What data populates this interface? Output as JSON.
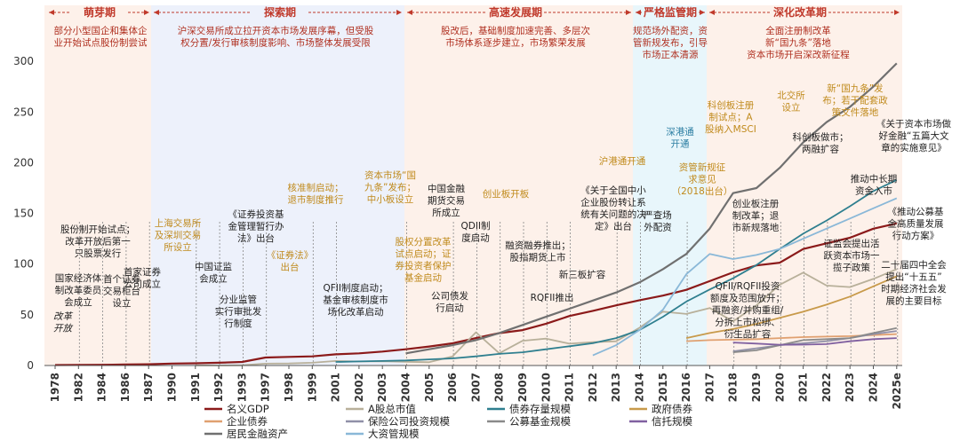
{
  "chart_data": {
    "type": "line",
    "x_labels": [
      "1978",
      "1982",
      "1984",
      "1986",
      "1987",
      "1990",
      "1991",
      "1992",
      "1993",
      "1997",
      "1998",
      "1999",
      "2001",
      "2002",
      "2003",
      "2004",
      "2005",
      "2006",
      "2007",
      "2008",
      "2009",
      "2010",
      "2011",
      "2012",
      "2013",
      "2014",
      "2015",
      "2016",
      "2017",
      "2018",
      "2019",
      "2020",
      "2021",
      "2022",
      "2023",
      "2024",
      "2025e"
    ],
    "ylim": [
      0,
      300
    ],
    "yticks": [
      "0",
      "50",
      "100",
      "150",
      "200",
      "250",
      "300"
    ],
    "colors": {
      "gdp": "#8b1a1a",
      "ashare": "#b8b09a",
      "bond": "#2f7f8f",
      "govbond": "#c89a4a",
      "corpbond": "#e0a070",
      "insurance": "#9090a8",
      "fund": "#8a8a8a",
      "trust": "#8060a0",
      "resident": "#707070",
      "asset": "#8ab8d8"
    },
    "series": [
      {
        "name": "名义GDP",
        "key": "gdp",
        "color": "#8b1a1a",
        "values": [
          0.4,
          0.5,
          0.7,
          1.0,
          1.2,
          1.9,
          2.2,
          2.7,
          3.5,
          7.9,
          8.5,
          9.0,
          11.0,
          12.0,
          13.7,
          16.0,
          18.7,
          21.9,
          27.0,
          31.9,
          34.9,
          41.2,
          48.8,
          53.9,
          59.3,
          64.4,
          68.9,
          74.6,
          83.2,
          91.9,
          98.7,
          101.4,
          114.9,
          120.5,
          126.0,
          134.9,
          140.2
        ]
      },
      {
        "name": "A股总市值",
        "key": "ashare",
        "color": "#b8b09a",
        "values": [
          null,
          null,
          null,
          null,
          null,
          null,
          0.1,
          0.1,
          0.3,
          1.8,
          2.0,
          2.7,
          4.5,
          3.9,
          4.2,
          3.7,
          3.2,
          8.9,
          32.7,
          12.1,
          24.4,
          26.5,
          21.5,
          23.0,
          23.9,
          37.3,
          53.1,
          50.8,
          56.7,
          43.5,
          59.3,
          79.7,
          91.6,
          78.8,
          77.3,
          85.4,
          95.0
        ]
      },
      {
        "name": "债券存量规模",
        "key": "bond",
        "color": "#2f7f8f",
        "values": [
          null,
          null,
          null,
          null,
          null,
          null,
          null,
          null,
          null,
          null,
          null,
          null,
          3.5,
          4.0,
          4.5,
          5.0,
          6.0,
          7.0,
          9.0,
          11.5,
          13.0,
          16.0,
          19.0,
          22.0,
          27.0,
          35.0,
          48.0,
          63.0,
          75.0,
          86.0,
          99.0,
          115.0,
          130.0,
          143.0,
          157.0,
          172.0,
          183.0
        ]
      },
      {
        "name": "政府债券",
        "key": "govbond",
        "color": "#c89a4a",
        "values": [
          null,
          null,
          null,
          null,
          null,
          null,
          null,
          null,
          null,
          null,
          null,
          null,
          null,
          null,
          null,
          null,
          null,
          null,
          null,
          null,
          null,
          null,
          null,
          null,
          null,
          null,
          null,
          27.0,
          32.0,
          36.0,
          41.0,
          47.0,
          53.0,
          60.0,
          68.0,
          78.0,
          88.0
        ]
      },
      {
        "name": "企业债券",
        "key": "corpbond",
        "color": "#e0a070",
        "values": [
          null,
          null,
          null,
          null,
          null,
          null,
          null,
          null,
          null,
          null,
          null,
          null,
          null,
          null,
          null,
          null,
          null,
          null,
          null,
          null,
          null,
          null,
          null,
          null,
          null,
          null,
          null,
          24.0,
          25.0,
          25.5,
          26.0,
          27.0,
          28.0,
          28.5,
          29.0,
          30.0,
          31.0
        ]
      },
      {
        "name": "保险公司投资规模",
        "key": "insurance",
        "color": "#9090a8",
        "values": [
          null,
          null,
          null,
          null,
          null,
          null,
          null,
          null,
          null,
          null,
          null,
          null,
          null,
          null,
          null,
          null,
          null,
          null,
          null,
          null,
          null,
          null,
          null,
          null,
          null,
          null,
          null,
          null,
          null,
          14.0,
          17.0,
          20.0,
          22.0,
          24.0,
          27.0,
          31.0,
          34.0
        ]
      },
      {
        "name": "公募基金规模",
        "key": "fund",
        "color": "#8a8a8a",
        "values": [
          null,
          null,
          null,
          null,
          null,
          null,
          null,
          null,
          null,
          null,
          null,
          null,
          null,
          null,
          null,
          null,
          null,
          null,
          null,
          null,
          null,
          null,
          null,
          null,
          null,
          null,
          null,
          null,
          null,
          13.0,
          15.0,
          20.0,
          25.0,
          26.0,
          27.0,
          32.0,
          37.0
        ]
      },
      {
        "name": "信托规模",
        "key": "trust",
        "color": "#8060a0",
        "values": [
          null,
          null,
          null,
          null,
          null,
          null,
          null,
          null,
          null,
          null,
          null,
          null,
          null,
          null,
          null,
          null,
          null,
          null,
          null,
          null,
          null,
          null,
          null,
          null,
          null,
          null,
          null,
          null,
          null,
          22.7,
          21.6,
          20.5,
          20.6,
          21.1,
          23.9,
          26.0,
          27.0
        ]
      },
      {
        "name": "居民金融资产",
        "key": "resident",
        "color": "#707070",
        "values": [
          null,
          null,
          null,
          null,
          null,
          null,
          null,
          null,
          null,
          null,
          null,
          null,
          null,
          null,
          null,
          12.0,
          16.0,
          20.0,
          25.0,
          32.0,
          40.0,
          48.0,
          56.0,
          64.0,
          72.0,
          82.0,
          95.0,
          110.0,
          135.0,
          170.0,
          175.0,
          195.0,
          220.0,
          240.0,
          255.0,
          275.0,
          298.0
        ]
      },
      {
        "name": "大资管规模",
        "key": "asset",
        "color": "#8ab8d8",
        "values": [
          null,
          null,
          null,
          null,
          null,
          null,
          null,
          null,
          null,
          null,
          null,
          null,
          null,
          null,
          null,
          null,
          null,
          null,
          null,
          null,
          null,
          null,
          null,
          10.0,
          20.0,
          35.0,
          55.0,
          90.0,
          110.0,
          105.0,
          109.0,
          115.0,
          125.0,
          135.0,
          145.0,
          155.0,
          165.0
        ]
      }
    ]
  },
  "periods": [
    {
      "name": "萌芽期",
      "desc": [
        "部分小型国企和集体企",
        "业开始试点股份制尝试"
      ]
    },
    {
      "name": "探索期",
      "desc": [
        "沪深交易所成立拉开资本市场发展序幕，但受股",
        "权分置/发行审核制度影响、市场整体发展受限"
      ]
    },
    {
      "name": "高速发展期",
      "desc": [
        "股改后，基础制度加速完善、多层次",
        "市场体系逐步建立，市场繁荣发展"
      ]
    },
    {
      "name": "严格监管期",
      "desc": [
        "规范场外配资，资",
        "管新规发布，引导",
        "市场正本清源"
      ]
    },
    {
      "name": "深化改革期",
      "desc": [
        "全面注册制改革",
        "新“国九条”落地",
        "资本市场开启深改新征程"
      ]
    }
  ],
  "events": {
    "reform": [
      "改革",
      "开放"
    ],
    "e1982": [
      "国家经济体",
      "制改革委员",
      "会成立"
    ],
    "e1984": [
      "股份制开始试点；",
      "改革开放后第一",
      "只股票发行"
    ],
    "e1986a": [
      "首个证券",
      "交易柜台",
      "设立"
    ],
    "e1986b": [
      "首家证券",
      "公司成立"
    ],
    "e1990": [
      "上海交易所",
      "及深圳交易",
      "所设立"
    ],
    "e1992a": [
      "中国证监",
      "会成立"
    ],
    "e1992b": [
      "《证券投资基",
      "金管理暂行办",
      "法》出台"
    ],
    "e1993": [
      "分业监管",
      "实行审批发",
      "行制度"
    ],
    "e1997": [
      "核准制启动；",
      "退市制度推行"
    ],
    "e1998": [
      "《证券法》",
      "出台"
    ],
    "e2002": [
      "QFII制度启动；",
      "基金审核制度市",
      "场化改革启动"
    ],
    "e2004": [
      "资本市场“国",
      "九条”发布；",
      "中小板设立"
    ],
    "e2005": [
      "股权分置改革",
      "试点启动；证",
      "券投资者保护",
      "基金启动"
    ],
    "e2006a": [
      "中国金融",
      "期货交易",
      "所成立"
    ],
    "e2006b": [
      "公司债发",
      "行启动"
    ],
    "e2007": [
      "QDII制",
      "度启动"
    ],
    "e2009": [
      "创业板开板"
    ],
    "e2010": [
      "融资融券推出；",
      "股指期货上市"
    ],
    "e2011": [
      "RQFII推出"
    ],
    "e2013": [
      "新三板扩容"
    ],
    "e2013b": [
      "《关于全国中小",
      "企业股份转让系",
      "统有关问题的决",
      "定》出台"
    ],
    "e2014": [
      "沪港通开通"
    ],
    "e2015": [
      "严查场",
      "外配资"
    ],
    "e2016": [
      "深港通",
      "开通"
    ],
    "e2017": [
      "资管新规征",
      "求意见",
      "（2018出台）"
    ],
    "e2019a": [
      "科创板注册",
      "制试点；A",
      "股纳入MSCI"
    ],
    "e2019b": [
      "QFII/RQFII投资",
      "额度及范围放开；",
      "再融资/并购重组/",
      "分拆上市松绑、",
      "衍生品扩容"
    ],
    "e2020": [
      "创业板注册",
      "制改革；退",
      "市新规落地"
    ],
    "e2021": [
      "北交所",
      "设立"
    ],
    "e2022": [
      "科创板做市；",
      "两融扩容"
    ],
    "e2023": [
      "新“国九条”发",
      "布；若干配套政",
      "策文件落地"
    ],
    "e2023b": [
      "证监会提出活",
      "跃资本市场一",
      "揽子政策"
    ],
    "e2024": [
      "推动中长期",
      "资金入市"
    ],
    "e2025a": [
      "《关于资本市场做",
      "好金融“五篇大文",
      "章的实施意见》"
    ],
    "e2025b": [
      "《推动公募基",
      "金高质量发展",
      "行动方案》"
    ],
    "e2025c": [
      "二十届四中全会",
      "提出“十五五”",
      "时期经济社会发",
      "展的主要目标"
    ]
  },
  "legend": [
    "名义GDP",
    "A股总市值",
    "债券存量规模",
    "政府债券",
    "企业债券",
    "保险公司投资规模",
    "公募基金规模",
    "信托规模",
    "居民金融资产",
    "大资管规模"
  ]
}
